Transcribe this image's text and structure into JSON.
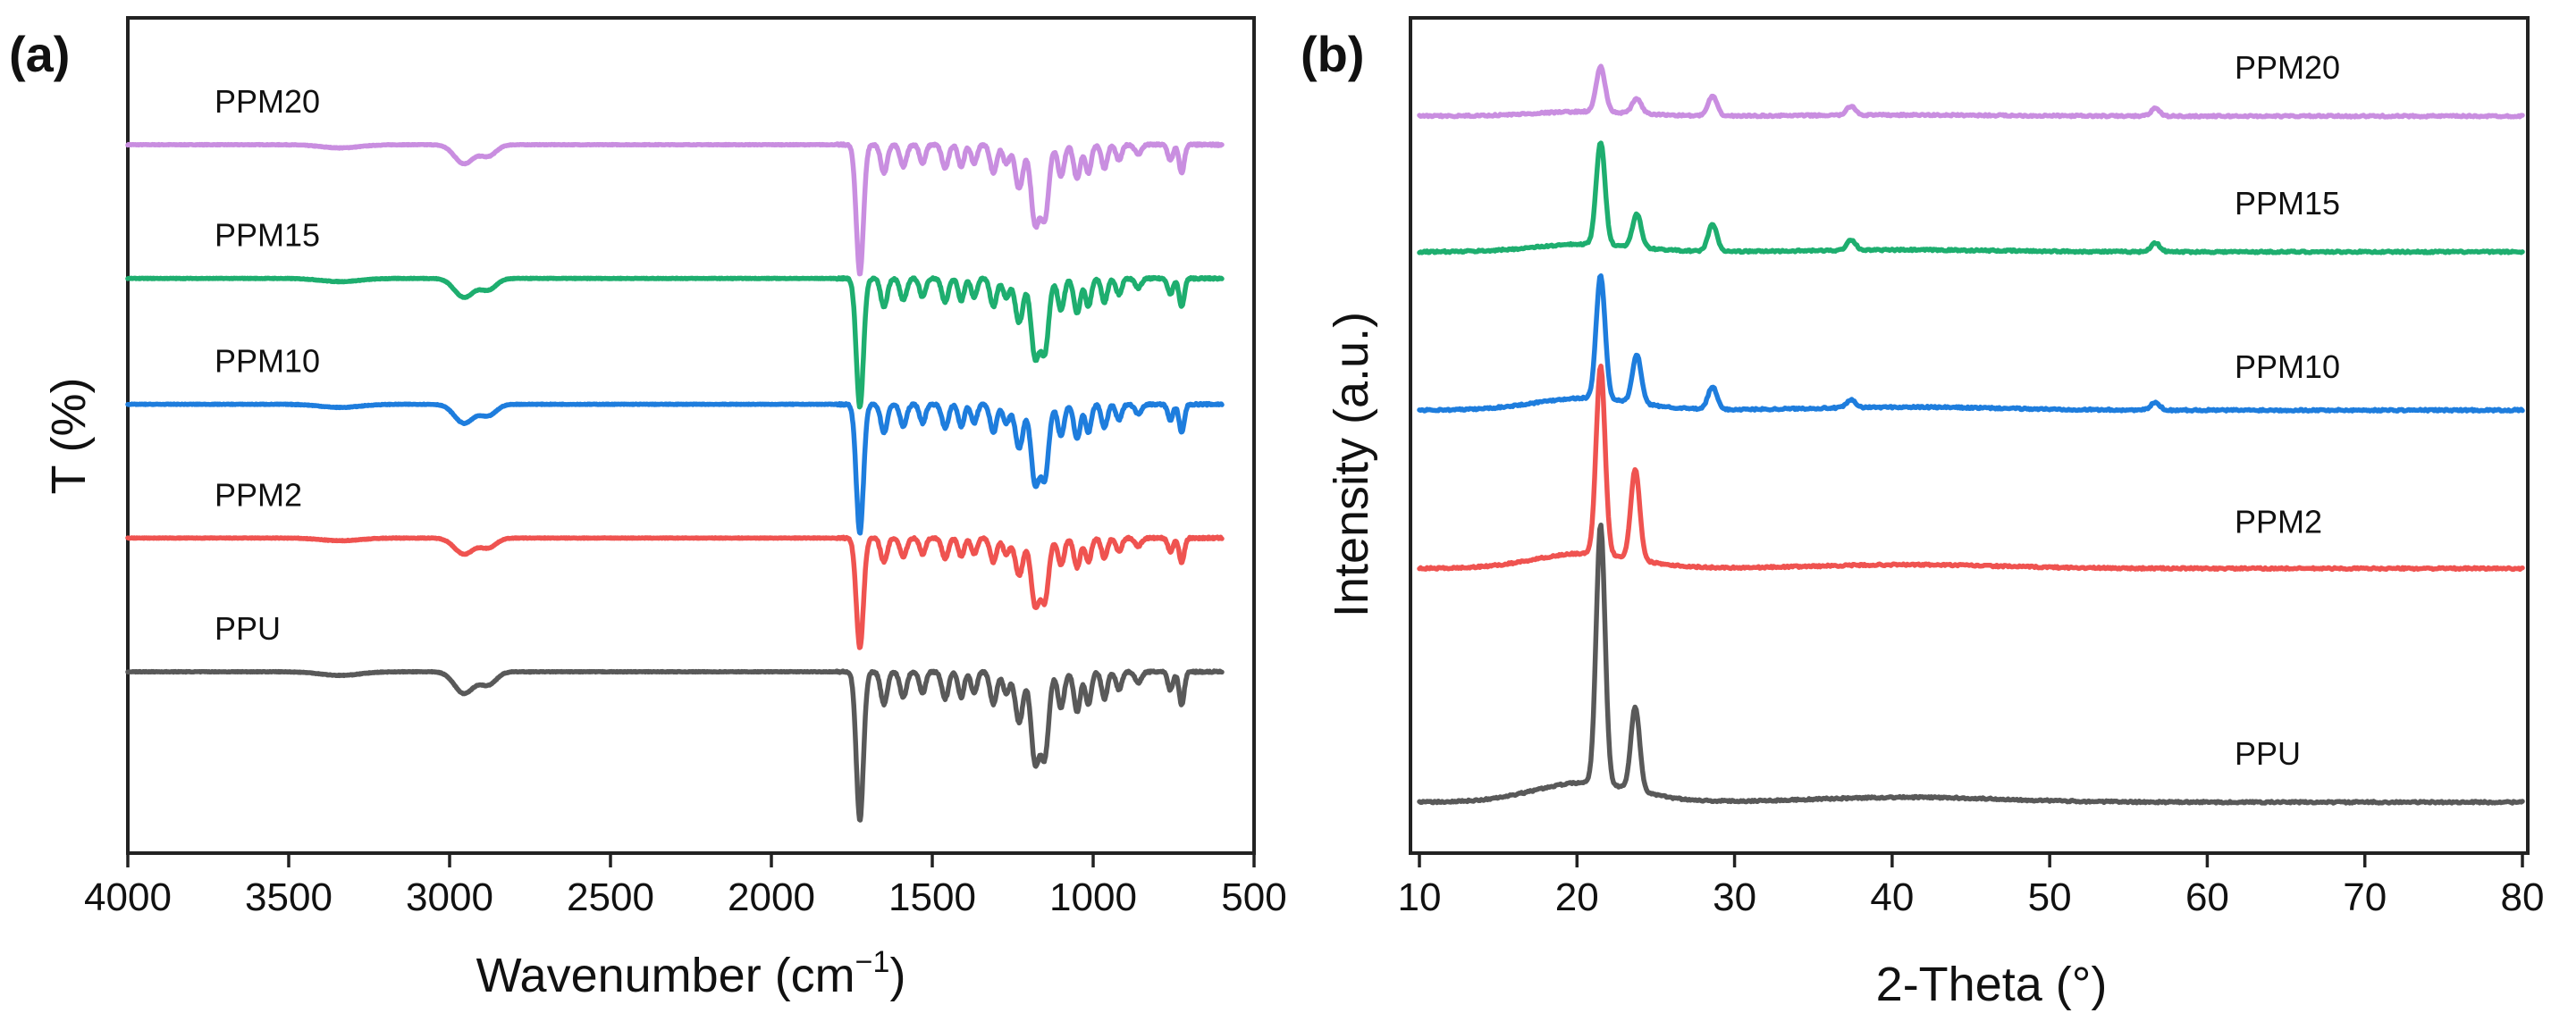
{
  "figure": {
    "panels": [
      "(a)",
      "(b)"
    ]
  },
  "colors": {
    "PPU": "#595959",
    "PPM2": "#ef5350",
    "PPM10": "#1e7ddd",
    "PPM15": "#1eae6f",
    "PPM20": "#c98ee0"
  },
  "chart_data": [
    {
      "panel": "(a)",
      "type": "line",
      "title": "",
      "xlabel": "Wavenumber (cm",
      "xlabel_sup": "−1",
      "xlabel_close": ")",
      "ylabel": "T (%)",
      "xlim": [
        4000,
        500
      ],
      "x_reversed": true,
      "y_ticks_shown": false,
      "xticks": [
        4000,
        3500,
        3000,
        2500,
        2000,
        1500,
        1000,
        500
      ],
      "xtick_labels": [
        "4000",
        "3500",
        "3000",
        "2500",
        "2000",
        "1500",
        "1000",
        "500"
      ],
      "x_range_plotted": [
        4000,
        600
      ],
      "series": [
        {
          "name": "PPM20",
          "baseline": 4.1
        },
        {
          "name": "PPM15",
          "baseline": 3.25
        },
        {
          "name": "PPM10",
          "baseline": 2.45
        },
        {
          "name": "PPM2",
          "baseline": 1.6
        },
        {
          "name": "PPU",
          "baseline": 0.75
        }
      ],
      "bands": [
        {
          "x": 2955,
          "depth": 0.12,
          "width": 30
        },
        {
          "x": 2880,
          "depth": 0.07,
          "width": 25
        },
        {
          "x": 1725,
          "depth": 0.82,
          "width": 11
        },
        {
          "x": 1650,
          "depth": 0.18,
          "width": 10
        },
        {
          "x": 1590,
          "depth": 0.14,
          "width": 10
        },
        {
          "x": 1530,
          "depth": 0.12,
          "width": 9
        },
        {
          "x": 1460,
          "depth": 0.15,
          "width": 10
        },
        {
          "x": 1410,
          "depth": 0.14,
          "width": 9
        },
        {
          "x": 1370,
          "depth": 0.12,
          "width": 9
        },
        {
          "x": 1310,
          "depth": 0.18,
          "width": 10
        },
        {
          "x": 1270,
          "depth": 0.12,
          "width": 10
        },
        {
          "x": 1230,
          "depth": 0.28,
          "width": 12
        },
        {
          "x": 1180,
          "depth": 0.5,
          "width": 13
        },
        {
          "x": 1150,
          "depth": 0.45,
          "width": 12
        },
        {
          "x": 1100,
          "depth": 0.2,
          "width": 10
        },
        {
          "x": 1050,
          "depth": 0.22,
          "width": 10
        },
        {
          "x": 1015,
          "depth": 0.18,
          "width": 9
        },
        {
          "x": 965,
          "depth": 0.15,
          "width": 9
        },
        {
          "x": 920,
          "depth": 0.1,
          "width": 9
        },
        {
          "x": 860,
          "depth": 0.06,
          "width": 10
        },
        {
          "x": 760,
          "depth": 0.1,
          "width": 8
        },
        {
          "x": 725,
          "depth": 0.18,
          "width": 8
        },
        {
          "x": 3340,
          "depth": 0.02,
          "width": 60
        }
      ]
    },
    {
      "panel": "(b)",
      "type": "line",
      "title": "",
      "xlabel": "2-Theta (°)",
      "ylabel": "Intensity (a.u.)",
      "xlim": [
        10,
        80
      ],
      "y_ticks_shown": false,
      "xticks": [
        10,
        20,
        30,
        40,
        50,
        60,
        70,
        80
      ],
      "xtick_labels": [
        "10",
        "20",
        "30",
        "40",
        "50",
        "60",
        "70",
        "80"
      ],
      "series": [
        {
          "name": "PPM20",
          "baseline": 4.55,
          "peaks": [
            {
              "x": 21.5,
              "h": 0.3
            },
            {
              "x": 23.8,
              "h": 0.1
            },
            {
              "x": 28.6,
              "h": 0.13
            },
            {
              "x": 37.4,
              "h": 0.06
            },
            {
              "x": 56.7,
              "h": 0.05
            }
          ],
          "hump": 0.03
        },
        {
          "name": "PPM15",
          "baseline": 3.65,
          "peaks": [
            {
              "x": 21.5,
              "h": 0.68
            },
            {
              "x": 23.8,
              "h": 0.22
            },
            {
              "x": 28.6,
              "h": 0.18
            },
            {
              "x": 37.4,
              "h": 0.07
            },
            {
              "x": 56.7,
              "h": 0.06
            }
          ],
          "hump": 0.05
        },
        {
          "name": "PPM10",
          "baseline": 2.6,
          "peaks": [
            {
              "x": 21.5,
              "h": 0.82
            },
            {
              "x": 23.8,
              "h": 0.32
            },
            {
              "x": 28.6,
              "h": 0.15
            },
            {
              "x": 37.4,
              "h": 0.05
            },
            {
              "x": 56.7,
              "h": 0.05
            }
          ],
          "hump": 0.08
        },
        {
          "name": "PPM2",
          "baseline": 1.55,
          "peaks": [
            {
              "x": 21.5,
              "h": 1.25
            },
            {
              "x": 23.7,
              "h": 0.6
            }
          ],
          "hump": 0.1
        },
        {
          "name": "PPU",
          "baseline": 0.0,
          "peaks": [
            {
              "x": 21.5,
              "h": 1.72
            },
            {
              "x": 23.7,
              "h": 0.55
            }
          ],
          "hump": 0.13
        }
      ]
    }
  ]
}
